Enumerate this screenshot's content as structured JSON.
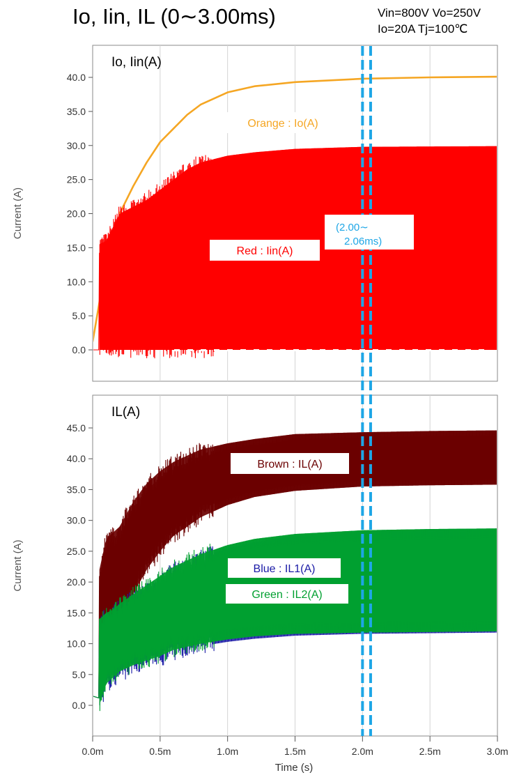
{
  "title": "Io, Iin, IL (0∼3.00ms)",
  "conditions": [
    "Vin=800V Vo=250V",
    "Io=20A Tj=100℃"
  ],
  "colors": {
    "orange": "#f5a623",
    "red": "#ff0000",
    "brown": "#6b0000",
    "blue": "#1a1aa6",
    "green": "#00a030",
    "marker": "#1ea6e6"
  },
  "window_marker": {
    "x": [
      2.0,
      2.06
    ],
    "label": [
      "(2.00∼",
      "2.06ms)"
    ]
  },
  "chart_data": [
    {
      "type": "line",
      "title": "Io, Iin(A)",
      "ylabel": "Current (A)",
      "xlabel": "",
      "xlim": [
        0,
        3.0
      ],
      "ylim": [
        0,
        40
      ],
      "yticks": [
        "0.0",
        "5.0",
        "10.0",
        "15.0",
        "20.0",
        "25.0",
        "30.0",
        "35.0",
        "40.0"
      ],
      "grid": "vertical",
      "series": [
        {
          "name": "Orange : Io(A)",
          "color": "#f5a623",
          "x": [
            0,
            0.05,
            0.1,
            0.15,
            0.2,
            0.25,
            0.3,
            0.4,
            0.5,
            0.6,
            0.7,
            0.8,
            1.0,
            1.2,
            1.5,
            2.0,
            2.5,
            3.0
          ],
          "y": [
            1.2,
            7,
            12,
            15,
            20,
            22,
            24,
            27.5,
            30.5,
            32.5,
            34.5,
            36,
            37.8,
            38.7,
            39.3,
            39.8,
            40,
            40.1
          ]
        },
        {
          "name": "Red : Iin(A)",
          "color": "#ff0000",
          "band": true,
          "x": [
            0.05,
            0.1,
            0.15,
            0.2,
            0.3,
            0.4,
            0.5,
            0.6,
            0.7,
            0.8,
            1.0,
            1.2,
            1.5,
            2.0,
            3.0
          ],
          "y_max": [
            15.5,
            16,
            18,
            20,
            21,
            22,
            23.5,
            25,
            26.5,
            27.5,
            28.5,
            29,
            29.5,
            29.8,
            29.9
          ],
          "y_min": [
            0,
            0,
            0,
            0,
            0,
            0,
            0,
            0,
            0,
            0,
            0,
            0,
            0,
            0,
            0
          ]
        }
      ]
    },
    {
      "type": "line",
      "title": "IL(A)",
      "ylabel": "Current (A)",
      "xlabel": "Time (s)",
      "xlim": [
        0,
        3.0
      ],
      "ylim": [
        0,
        45
      ],
      "yticks": [
        "0.0",
        "5.0",
        "10.0",
        "15.0",
        "20.0",
        "25.0",
        "30.0",
        "35.0",
        "40.0",
        "45.0"
      ],
      "xticks": [
        "0.0m",
        "0.5m",
        "1.0m",
        "1.5m",
        "2.0m",
        "2.5m",
        "3.0m"
      ],
      "grid": "vertical",
      "series": [
        {
          "name": "Brown : IL(A)",
          "color": "#6b0000",
          "band": true,
          "x": [
            0.05,
            0.1,
            0.15,
            0.2,
            0.3,
            0.4,
            0.5,
            0.6,
            0.8,
            1.0,
            1.2,
            1.5,
            2.0,
            2.5,
            3.0
          ],
          "y_max": [
            22,
            27,
            28,
            29,
            33,
            36,
            38,
            39.5,
            41.5,
            42.5,
            43.2,
            44,
            44.3,
            44.5,
            44.6
          ],
          "y_min": [
            6,
            9,
            10,
            14,
            18,
            22,
            25,
            27.5,
            30.5,
            32.5,
            33.8,
            34.8,
            35.5,
            35.7,
            35.8
          ]
        },
        {
          "name": "Blue : IL1(A)",
          "color": "#1a1aa6",
          "band": true,
          "x": [
            0.05,
            0.1,
            0.15,
            0.2,
            0.3,
            0.4,
            0.5,
            0.6,
            0.8,
            1.0,
            1.2,
            1.5,
            2.0,
            2.5,
            3.0
          ],
          "y_max": [
            14,
            14.5,
            15,
            16,
            17.5,
            19,
            20.5,
            22,
            24,
            25.5,
            26.5,
            27.5,
            28.2,
            28.5,
            28.6
          ],
          "y_min": [
            0,
            3,
            4,
            5,
            6,
            6.8,
            7.5,
            8.5,
            9.6,
            10.3,
            10.8,
            11.3,
            11.6,
            11.7,
            11.8
          ]
        },
        {
          "name": "Green : IL2(A)",
          "color": "#00a030",
          "band": true,
          "x": [
            0.05,
            0.1,
            0.15,
            0.2,
            0.3,
            0.4,
            0.5,
            0.6,
            0.8,
            1.0,
            1.2,
            1.5,
            2.0,
            2.5,
            3.0
          ],
          "y_max": [
            14,
            15,
            15.5,
            16.5,
            18,
            19.5,
            21,
            22.5,
            24.5,
            26,
            27,
            27.8,
            28.4,
            28.6,
            28.7
          ],
          "y_min": [
            0,
            3.5,
            4.5,
            5.5,
            6.5,
            7.3,
            8,
            9,
            10,
            10.7,
            11.2,
            11.6,
            11.8,
            11.9,
            12
          ]
        }
      ]
    }
  ]
}
